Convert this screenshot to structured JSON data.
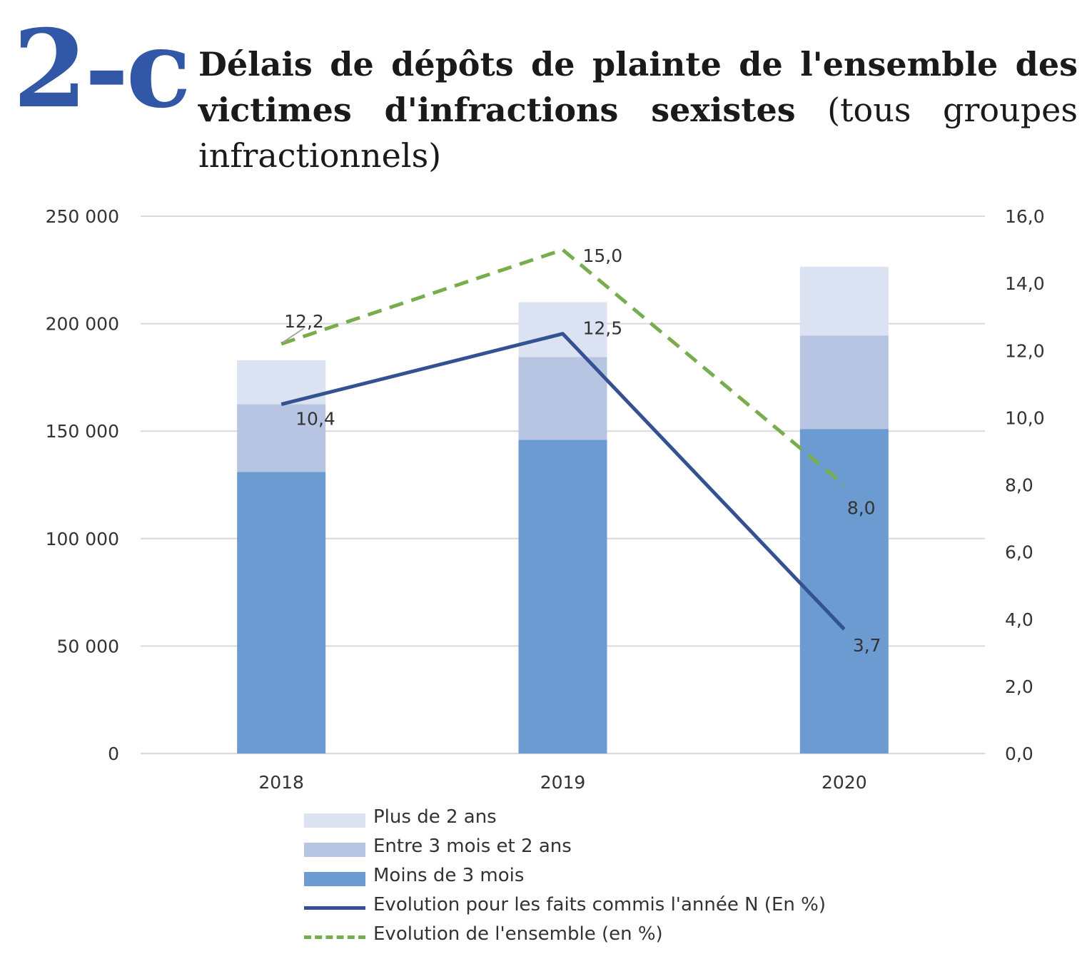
{
  "header": {
    "figure_number": "2-c",
    "title_bold": "Délais de dépôts de plainte de l'ensemble des victimes d'infractions sexistes",
    "title_normal": "(tous groupes infractionnels)"
  },
  "colors": {
    "moins_3_mois": "#6b9bd1",
    "entre_3_mois_2_ans": "#b7c5e3",
    "plus_2_ans": "#dbe2f2",
    "evolution_n": "#345191",
    "evolution_ensemble": "#78ad4d",
    "grid": "#d9d9d9",
    "text": "#333333"
  },
  "chart_data": {
    "type": "bar",
    "stacked": true,
    "categories": [
      "2018",
      "2019",
      "2020"
    ],
    "series": [
      {
        "name": "Moins de 3 mois",
        "values": [
          131000,
          146000,
          151000
        ]
      },
      {
        "name": "Entre 3 mois et 2 ans",
        "values": [
          31500,
          38500,
          43500
        ]
      },
      {
        "name": "Plus de 2 ans",
        "values": [
          20500,
          25500,
          32000
        ]
      }
    ],
    "line_series": [
      {
        "name": "Evolution pour les faits commis l'année N (En %)",
        "axis": "right",
        "style": "solid",
        "values": [
          10.4,
          12.5,
          3.7
        ],
        "labels": [
          "10,4",
          "12,5",
          "3,7"
        ]
      },
      {
        "name": "Evolution de l'ensemble (en %)",
        "axis": "right",
        "style": "dashed",
        "values": [
          12.2,
          15.0,
          8.0
        ],
        "labels": [
          "12,2",
          "15,0",
          "8,0"
        ]
      }
    ],
    "y_left": {
      "min": 0,
      "max": 250000,
      "ticks": [
        0,
        50000,
        100000,
        150000,
        200000,
        250000
      ],
      "tick_labels": [
        "0",
        "50 000",
        "100 000",
        "150 000",
        "200 000",
        "250 000"
      ]
    },
    "y_right": {
      "min": 0,
      "max": 16,
      "ticks": [
        0,
        2,
        4,
        6,
        8,
        10,
        12,
        14,
        16
      ],
      "tick_labels": [
        "0,0",
        "2,0",
        "4,0",
        "6,0",
        "8,0",
        "10,0",
        "12,0",
        "14,0",
        "16,0"
      ]
    },
    "grid": true,
    "legend": {
      "position": "bottom",
      "items": [
        {
          "label": "Plus de 2 ans",
          "kind": "box",
          "color_key": "plus_2_ans"
        },
        {
          "label": "Entre 3 mois et 2 ans",
          "kind": "box",
          "color_key": "entre_3_mois_2_ans"
        },
        {
          "label": "Moins de 3 mois",
          "kind": "box",
          "color_key": "moins_3_mois"
        },
        {
          "label": "Evolution pour les faits commis l'année N (En %)",
          "kind": "solid",
          "color_key": "evolution_n"
        },
        {
          "label": "Evolution de l'ensemble (en %)",
          "kind": "dashed",
          "color_key": "evolution_ensemble"
        }
      ]
    }
  }
}
